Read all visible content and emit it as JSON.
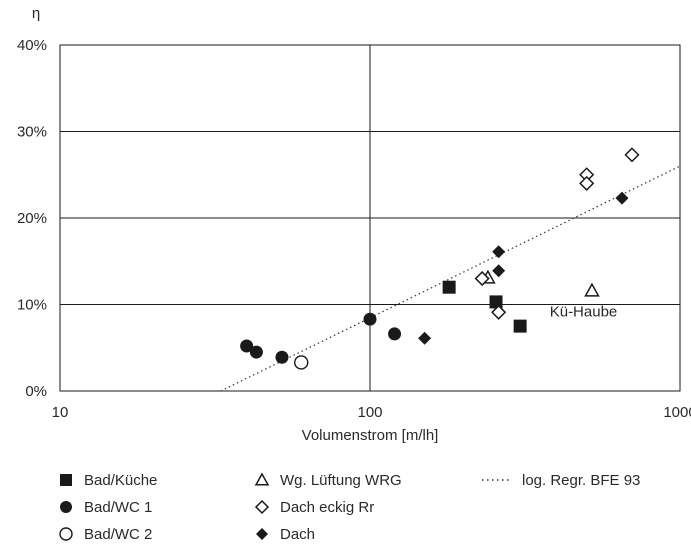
{
  "chart_data": {
    "type": "scatter",
    "title": "",
    "xlabel": "Volumenstrom [m/lh]",
    "ylabel": "η",
    "x_scale": "log",
    "xlim": [
      10,
      1000
    ],
    "ylim": [
      0,
      40
    ],
    "x_ticks": [
      "10",
      "100",
      "1000"
    ],
    "y_ticks": [
      "0%",
      "10%",
      "20%",
      "30%",
      "40%"
    ],
    "grid": true,
    "legend_placement": "bottom",
    "series": [
      {
        "name": "Bad/Küche",
        "marker": "filled-square",
        "points": [
          [
            180,
            12
          ],
          [
            255,
            10.3
          ],
          [
            305,
            7.5
          ]
        ]
      },
      {
        "name": "Bad/WC 1",
        "marker": "filled-circle",
        "points": [
          [
            40,
            5.2
          ],
          [
            43,
            4.5
          ],
          [
            52,
            3.9
          ],
          [
            100,
            8.3
          ],
          [
            120,
            6.6
          ]
        ]
      },
      {
        "name": "Bad/WC 2",
        "marker": "open-circle",
        "points": [
          [
            60,
            3.3
          ]
        ]
      },
      {
        "name": "Wg. Lüftung WRG",
        "marker": "open-triangle",
        "points": [
          [
            240,
            13.1
          ],
          [
            520,
            11.6
          ]
        ]
      },
      {
        "name": "Dach eckig Rr",
        "marker": "open-diamond",
        "points": [
          [
            230,
            13
          ],
          [
            260,
            9.1
          ],
          [
            500,
            25
          ],
          [
            500,
            24
          ],
          [
            700,
            27.3
          ]
        ]
      },
      {
        "name": "Dach",
        "marker": "filled-diamond",
        "points": [
          [
            150,
            6.1
          ],
          [
            260,
            16.1
          ],
          [
            260,
            13.9
          ],
          [
            650,
            22.3
          ]
        ]
      },
      {
        "name": "log. Regr. BFE 93",
        "marker": "dotted-line",
        "points": [
          [
            33,
            0
          ],
          [
            1000,
            26
          ]
        ]
      }
    ],
    "annotations": [
      {
        "text": "Kü-Haube",
        "x": 380,
        "y": 8.6
      }
    ]
  }
}
